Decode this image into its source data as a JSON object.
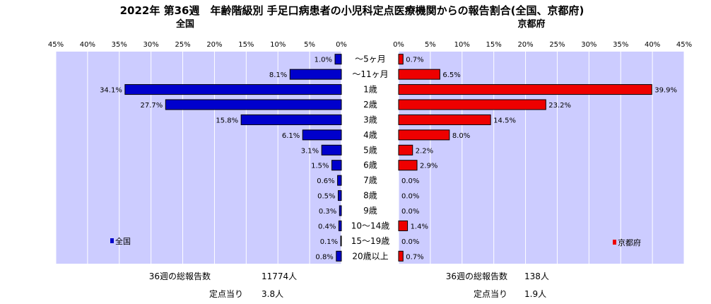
{
  "title": "2022年 第36週　年齢階級別 手足口病患者の小児科定点医療機関からの報告割合(全国、京都府)",
  "colors": {
    "national": "#0000cc",
    "kyoto": "#ee0000",
    "plot_bg": "#ccccff"
  },
  "chart_data": [
    {
      "type": "bar",
      "title": "全国",
      "direction": "left",
      "xlim": [
        0,
        45
      ],
      "tick_labels": [
        "45%",
        "40%",
        "35%",
        "30%",
        "25%",
        "20%",
        "15%",
        "10%",
        "5%",
        "0%"
      ],
      "categories": [
        "～5ヶ月",
        "～11ヶ月",
        "1歳",
        "2歳",
        "3歳",
        "4歳",
        "5歳",
        "6歳",
        "7歳",
        "8歳",
        "9歳",
        "10～14歳",
        "15～19歳",
        "20歳以上"
      ],
      "series": [
        {
          "name": "全国",
          "values": [
            1.0,
            8.1,
            34.1,
            27.7,
            15.8,
            6.1,
            3.1,
            1.5,
            0.6,
            0.5,
            0.3,
            0.4,
            0.1,
            0.8
          ],
          "labels": [
            "1.0%",
            "8.1%",
            "34.1%",
            "27.7%",
            "15.8%",
            "6.1%",
            "3.1%",
            "1.5%",
            "0.6%",
            "0.5%",
            "0.3%",
            "0.4%",
            "0.1%",
            "0.8%"
          ]
        }
      ],
      "legend": "bottom-left",
      "grid": true
    },
    {
      "type": "bar",
      "title": "京都府",
      "direction": "right",
      "xlim": [
        0,
        45
      ],
      "tick_labels": [
        "0%",
        "5%",
        "10%",
        "15%",
        "20%",
        "25%",
        "30%",
        "35%",
        "40%",
        "45%"
      ],
      "categories": [
        "～5ヶ月",
        "～11ヶ月",
        "1歳",
        "2歳",
        "3歳",
        "4歳",
        "5歳",
        "6歳",
        "7歳",
        "8歳",
        "9歳",
        "10～14歳",
        "15～19歳",
        "20歳以上"
      ],
      "series": [
        {
          "name": "京都府",
          "values": [
            0.7,
            6.5,
            39.9,
            23.2,
            14.5,
            8.0,
            2.2,
            2.9,
            0.0,
            0.0,
            0.0,
            1.4,
            0.0,
            0.7
          ],
          "labels": [
            "0.7%",
            "6.5%",
            "39.9%",
            "23.2%",
            "14.5%",
            "8.0%",
            "2.2%",
            "2.9%",
            "0.0%",
            "0.0%",
            "0.0%",
            "1.4%",
            "0.0%",
            "0.7%"
          ]
        }
      ],
      "legend": "bottom-right",
      "grid": true
    }
  ],
  "footer": {
    "national": {
      "total_label": "36週の総報告数",
      "total_value": "11774人",
      "per_label": "定点当り",
      "per_value": "3.8人"
    },
    "kyoto": {
      "total_label": "36週の総報告数",
      "total_value": "138人",
      "per_label": "定点当り",
      "per_value": "1.9人"
    }
  }
}
